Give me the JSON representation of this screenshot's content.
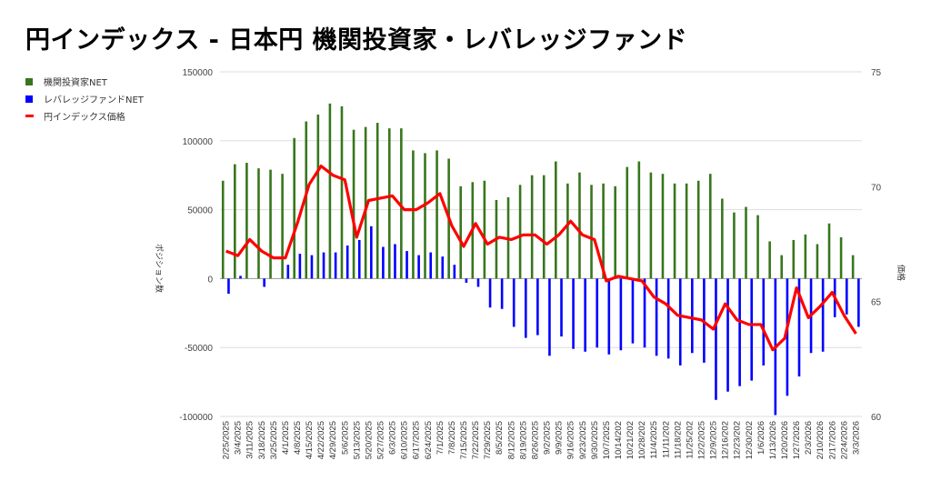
{
  "title": "円インデックス - 日本円 機関投資家・レバレッジファンド",
  "chart_data": {
    "type": "bar+line",
    "title": "円インデックス - 日本円 機関投資家・レバレッジファンド",
    "ylabel": "ポジション数",
    "y2label": "価格",
    "ylim": [
      -100000,
      150000
    ],
    "y2lim": [
      60,
      75
    ],
    "yticks": [
      -100000,
      -50000,
      0,
      50000,
      100000,
      150000
    ],
    "y2ticks": [
      60,
      65,
      70,
      75
    ],
    "grid": true,
    "legend_position": "left",
    "colors": {
      "inst": "#38761d",
      "lev": "#0000ff",
      "price": "#ff0000"
    },
    "categories": [
      "2/25/2025",
      "3/4/2025",
      "3/11/2025",
      "3/18/2025",
      "3/25/2025",
      "4/1/2025",
      "4/8/2025",
      "4/15/2025",
      "4/22/2025",
      "4/29/2025",
      "5/6/2025",
      "5/13/2025",
      "5/20/2025",
      "5/27/2025",
      "6/3/2025",
      "6/10/2025",
      "6/17/2025",
      "6/24/2025",
      "7/1/2025",
      "7/8/2025",
      "7/15/2025",
      "7/22/2025",
      "7/29/2025",
      "8/5/2025",
      "8/12/2025",
      "8/19/2025",
      "8/26/2025",
      "9/2/2025",
      "9/9/2025",
      "9/16/2025",
      "9/23/2025",
      "9/30/2025",
      "10/7/2025",
      "10/14/202",
      "10/21/202",
      "10/28/202",
      "11/4/2025",
      "11/11/202",
      "11/18/202",
      "11/25/202",
      "12/2/2025",
      "12/9/2025",
      "12/16/202",
      "12/23/202",
      "12/30/202",
      "1/6/2026",
      "1/13/2026",
      "1/20/2026",
      "1/27/2026",
      "2/3/2026",
      "2/10/2026",
      "2/17/2026",
      "2/24/2026",
      "3/3/2026"
    ],
    "series": [
      {
        "name": "機関投資家NET",
        "type": "bar",
        "axis": "left",
        "values": [
          71000,
          83000,
          84000,
          80000,
          79000,
          76000,
          102000,
          114000,
          119000,
          127000,
          125000,
          108000,
          110000,
          113000,
          109000,
          109000,
          93000,
          91000,
          93000,
          87000,
          67000,
          70000,
          71000,
          57000,
          59000,
          68000,
          75000,
          75000,
          85000,
          69000,
          77000,
          68000,
          69000,
          67000,
          81000,
          85000,
          77000,
          76000,
          69000,
          69000,
          71000,
          76000,
          58000,
          48000,
          52000,
          46000,
          27000,
          17000,
          28000,
          32000,
          25000,
          40000,
          30000,
          17000
        ]
      },
      {
        "name": "レバレッジファンドNET",
        "type": "bar",
        "axis": "left",
        "values": [
          -11000,
          2000,
          0,
          -6000,
          0,
          10000,
          18000,
          17000,
          19000,
          19000,
          24000,
          28000,
          38000,
          23000,
          25000,
          20000,
          17000,
          19000,
          16000,
          10000,
          -3000,
          -6000,
          -21000,
          -22000,
          -35000,
          -43000,
          -41000,
          -56000,
          -42000,
          -51000,
          -53000,
          -50000,
          -55000,
          -52000,
          -47000,
          -50000,
          -56000,
          -58000,
          -63000,
          -54000,
          -61000,
          -88000,
          -82000,
          -78000,
          -74000,
          -63000,
          -99000,
          -85000,
          -71000,
          -54000,
          -53000,
          -28000,
          -26000,
          -35000
        ]
      },
      {
        "name": "円インデックス価格",
        "type": "line",
        "axis": "right",
        "values": [
          67.2,
          67.0,
          67.7,
          67.2,
          66.9,
          66.9,
          68.4,
          70.1,
          70.9,
          70.5,
          70.3,
          67.8,
          69.4,
          69.5,
          69.6,
          69.0,
          69.0,
          69.3,
          69.7,
          68.3,
          67.4,
          68.4,
          67.5,
          67.8,
          67.7,
          67.9,
          67.9,
          67.5,
          67.9,
          68.5,
          67.9,
          67.7,
          65.9,
          66.1,
          66.0,
          65.9,
          65.2,
          64.9,
          64.4,
          64.3,
          64.2,
          63.8,
          64.9,
          64.2,
          64.0,
          64.0,
          62.9,
          63.4,
          65.6,
          64.3,
          64.8,
          65.4,
          64.4,
          63.6
        ]
      }
    ]
  }
}
